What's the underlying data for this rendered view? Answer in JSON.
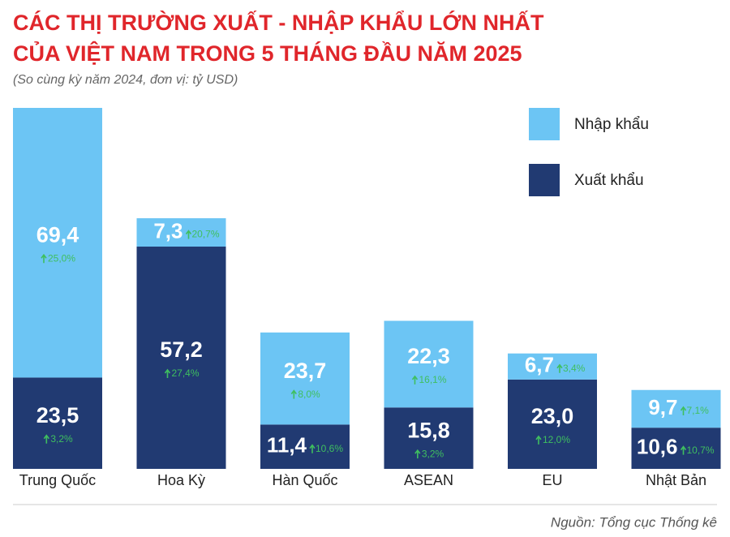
{
  "chart_data": {
    "type": "stacked_bar",
    "title": [
      "CÁC THỊ TRƯỜNG XUẤT - NHẬP KHẨU LỚN NHẤT",
      "CỦA VIỆT NAM TRONG 5 THÁNG ĐẦU NĂM 2025"
    ],
    "subtitle": "(So cùng kỳ năm 2024, đơn vị: tỷ USD)",
    "source": "Nguồn: Tổng cục Thống kê",
    "categories": [
      "Trung Quốc",
      "Hoa Kỳ",
      "Hàn Quốc",
      "ASEAN",
      "EU",
      "Nhật Bản"
    ],
    "series": [
      {
        "name": "Xuất khẩu",
        "color": "#213a72",
        "values": [
          23.5,
          57.2,
          11.4,
          15.8,
          23.0,
          10.6
        ],
        "value_labels": [
          "23,5",
          "57,2",
          "11,4",
          "15,8",
          "23,0",
          "10,6"
        ],
        "change_labels": [
          "3,2%",
          "27,4%",
          "10,6%",
          "3,2%",
          "12,0%",
          "10,7%"
        ]
      },
      {
        "name": "Nhập khẩu",
        "color": "#6cc5f4",
        "values": [
          69.4,
          7.3,
          23.7,
          22.3,
          6.7,
          9.7
        ],
        "value_labels": [
          "69,4",
          "7,3",
          "23,7",
          "22,3",
          "6,7",
          "9,7"
        ],
        "change_labels": [
          "25,0%",
          "20,7%",
          "8,0%",
          "16,1%",
          "3,4%",
          "7,1%"
        ]
      }
    ]
  }
}
